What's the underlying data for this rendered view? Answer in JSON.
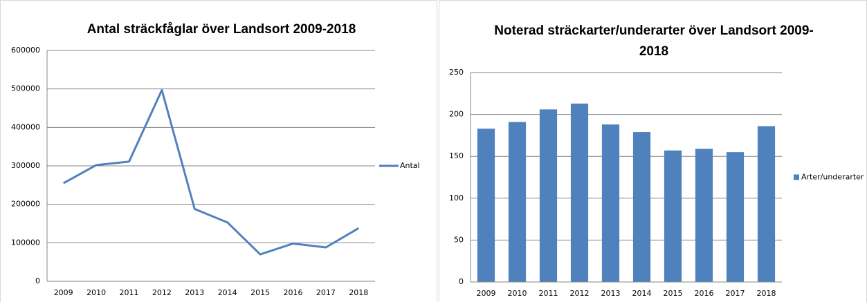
{
  "chart_data": [
    {
      "type": "line",
      "title": "Antal sträckfåglar över Landsort 2009-2018",
      "categories": [
        "2009",
        "2010",
        "2011",
        "2012",
        "2013",
        "2014",
        "2015",
        "2016",
        "2017",
        "2018"
      ],
      "series": [
        {
          "name": "Antal",
          "color": "#4f81bd",
          "values": [
            255000,
            302000,
            311000,
            497000,
            188000,
            153000,
            70000,
            98000,
            88000,
            138000
          ]
        }
      ],
      "ylim": [
        0,
        600000
      ],
      "yticks": [
        0,
        100000,
        200000,
        300000,
        400000,
        500000,
        600000
      ],
      "grid": true,
      "legend": "right"
    },
    {
      "type": "bar",
      "title": "Noterad sträckarter/underarter över Landsort 2009-2018",
      "categories": [
        "2009",
        "2010",
        "2011",
        "2012",
        "2013",
        "2014",
        "2015",
        "2016",
        "2017",
        "2018"
      ],
      "series": [
        {
          "name": "Arter/underarter",
          "color": "#4f81bd",
          "values": [
            183,
            191,
            206,
            213,
            188,
            179,
            157,
            159,
            155,
            186
          ]
        }
      ],
      "ylim": [
        0,
        250
      ],
      "yticks": [
        0,
        50,
        100,
        150,
        200,
        250
      ],
      "grid": true,
      "legend": "right"
    }
  ]
}
